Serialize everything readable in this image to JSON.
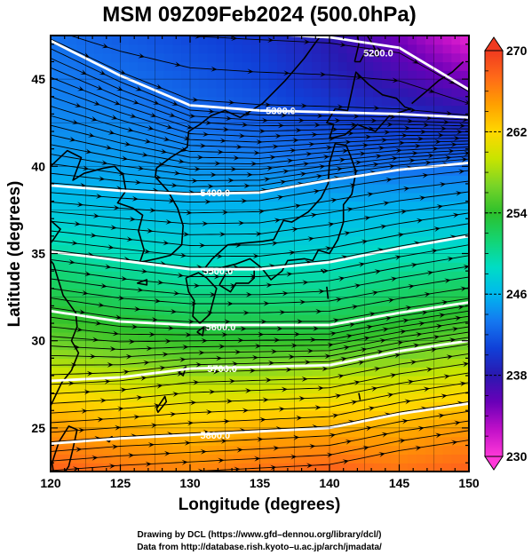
{
  "chart_data": {
    "type": "heatmap",
    "title": "MSM 09Z09Feb2024 (500.0hPa)",
    "xlabel": "Longitude (degrees)",
    "ylabel": "Latitude  (degrees)",
    "xlim": [
      120,
      150
    ],
    "ylim": [
      22.5,
      47.5
    ],
    "x_ticks": [
      120,
      125,
      130,
      135,
      140,
      145,
      150
    ],
    "y_ticks": [
      25,
      30,
      35,
      40,
      45
    ],
    "colorbar": {
      "min": 230,
      "max": 270,
      "tick_labels": [
        230,
        238,
        246,
        254,
        262,
        270
      ],
      "colors": [
        "#ff38d8",
        "#c010c8",
        "#6a00b8",
        "#2a18b0",
        "#1040d8",
        "#1478f0",
        "#00b8ee",
        "#00ddc4",
        "#14d472",
        "#2cc02c",
        "#78d428",
        "#c8e400",
        "#ffd800",
        "#ffa000",
        "#ff6a18",
        "#f03a20"
      ]
    },
    "color_field_x": [
      120,
      125,
      130,
      135,
      140,
      145,
      150
    ],
    "color_field_rows": [
      {
        "lat": 47.5,
        "values": [
          243,
          242,
          241,
          240,
          238,
          235,
          231
        ]
      },
      {
        "lat": 45.0,
        "values": [
          243.5,
          243,
          242,
          241,
          239,
          237,
          235
        ]
      },
      {
        "lat": 42.5,
        "values": [
          244,
          244,
          243,
          242,
          241,
          240,
          239
        ]
      },
      {
        "lat": 40.0,
        "values": [
          245,
          245,
          244.5,
          244,
          243.5,
          243,
          243
        ]
      },
      {
        "lat": 37.5,
        "values": [
          247,
          246.5,
          246,
          246,
          246,
          246,
          246
        ]
      },
      {
        "lat": 35.0,
        "values": [
          250,
          249,
          248,
          248,
          248,
          249,
          249
        ]
      },
      {
        "lat": 32.5,
        "values": [
          253,
          252,
          251,
          251,
          251,
          252,
          253
        ]
      },
      {
        "lat": 30.0,
        "values": [
          256,
          255,
          254,
          254,
          254,
          255,
          256
        ]
      },
      {
        "lat": 27.5,
        "values": [
          261,
          260,
          259,
          259,
          260,
          260,
          261
        ]
      },
      {
        "lat": 25.0,
        "values": [
          265,
          264,
          263,
          264,
          264,
          264,
          265
        ]
      },
      {
        "lat": 22.5,
        "values": [
          268,
          267,
          266,
          267,
          268,
          267,
          268
        ]
      }
    ],
    "contour_x": [
      120,
      125,
      130,
      135,
      140,
      145,
      150
    ],
    "contours": [
      {
        "label": "5200.0",
        "label_at": [
          143.5,
          46.5
        ],
        "lats": [
          48.5,
          48.0,
          47.8,
          47.6,
          47.4,
          46.8,
          44.4
        ]
      },
      {
        "label": "5300.0",
        "label_at": [
          136.5,
          43.2
        ],
        "lats": [
          47.2,
          45.2,
          43.5,
          43.2,
          43.1,
          43.0,
          42.8
        ]
      },
      {
        "label": "5400.0",
        "label_at": [
          131.8,
          38.5
        ],
        "lats": [
          38.9,
          38.6,
          38.4,
          38.5,
          39.2,
          39.8,
          40.2
        ]
      },
      {
        "label": "5500.0",
        "label_at": [
          132.0,
          34.0
        ],
        "lats": [
          35.1,
          34.6,
          34.1,
          34.1,
          34.5,
          35.3,
          36.0
        ]
      },
      {
        "label": "5600.0",
        "label_at": [
          132.2,
          30.8
        ],
        "lats": [
          31.7,
          31.1,
          30.9,
          30.9,
          30.9,
          31.6,
          32.2
        ]
      },
      {
        "label": "5700.0",
        "label_at": [
          132.3,
          28.4
        ],
        "lats": [
          27.7,
          27.9,
          28.4,
          28.5,
          28.6,
          29.4,
          30.0
        ]
      },
      {
        "label": "5800.0",
        "label_at": [
          131.8,
          24.6
        ],
        "lats": [
          24.1,
          24.4,
          24.6,
          24.8,
          25.0,
          25.8,
          26.4
        ]
      }
    ]
  },
  "credit": {
    "line1": "Drawing by DCL (https://www.gfd–dennou.org/library/dcl/)",
    "line2": "Data from http://database.rish.kyoto–u.ac.jp/arch/jmadata/"
  }
}
